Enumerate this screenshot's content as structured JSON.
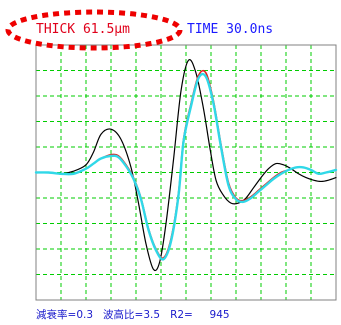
{
  "header": {
    "thickness_label": "THICK",
    "thickness_value": "61.5",
    "thickness_unit": "μm",
    "time_label": "TIME",
    "time_value": "30.0ns"
  },
  "footer": {
    "attenuation_label": "減衰率=",
    "attenuation_value": "0.3",
    "wave_height_ratio_label": "波高比=",
    "wave_height_ratio_value": "3.5",
    "r2_label": "R2=",
    "r2_value": "945"
  },
  "colors": {
    "background": "#ffffff",
    "frame": "#808080",
    "grid": "#00cc00",
    "highlight_ellipse": "#ee0000",
    "thick_text": "#e0001a",
    "time_text": "#1a1aff",
    "footer_text": "#1a1acc",
    "trace_measured": "#000000",
    "trace_fit_red": "#e02020",
    "trace_fit_cyan": "#30d8e8"
  },
  "chart_data": {
    "type": "line",
    "grid": true,
    "grid_style": "dashed",
    "x_divisions": 12,
    "y_divisions": 10,
    "xlim": [
      0,
      12
    ],
    "ylim": [
      -5,
      5
    ],
    "series": [
      {
        "key": "measured",
        "color": "#000000",
        "x": [
          0,
          0.5,
          1.0,
          1.5,
          2.0,
          2.3,
          2.6,
          3.0,
          3.4,
          3.8,
          4.1,
          4.4,
          4.7,
          4.95,
          5.2,
          5.5,
          5.8,
          6.1,
          6.4,
          6.7,
          6.95,
          7.2,
          7.5,
          7.8,
          8.1,
          8.4,
          8.7,
          9.0,
          9.3,
          9.6,
          9.9,
          10.2,
          10.5,
          10.8,
          11.1,
          11.4,
          11.7,
          12.0
        ],
        "y": [
          0,
          0,
          -0.05,
          0.05,
          0.3,
          0.8,
          1.5,
          1.7,
          1.3,
          0.2,
          -1.2,
          -2.8,
          -3.8,
          -3.5,
          -2.0,
          0.5,
          3.2,
          4.4,
          3.9,
          2.5,
          1.0,
          -0.3,
          -0.9,
          -1.2,
          -1.2,
          -1.0,
          -0.6,
          -0.2,
          0.15,
          0.35,
          0.3,
          0.15,
          -0.05,
          -0.2,
          -0.3,
          -0.35,
          -0.3,
          -0.2
        ]
      },
      {
        "key": "fit-red",
        "color": "#e02020",
        "x": [
          0,
          0.5,
          1.0,
          1.5,
          2.0,
          2.3,
          2.6,
          3.0,
          3.3,
          3.6,
          3.9,
          4.2,
          4.5,
          4.8,
          5.1,
          5.4,
          5.7,
          5.9,
          6.2,
          6.5,
          6.8,
          7.1,
          7.4,
          7.7,
          8.0,
          8.3,
          8.6,
          8.9,
          9.2,
          9.5,
          9.8,
          10.1,
          10.4,
          10.7,
          11.0,
          11.3,
          11.6,
          12.0
        ],
        "y": [
          0,
          0,
          -0.05,
          -0.05,
          0.15,
          0.35,
          0.55,
          0.7,
          0.65,
          0.3,
          -0.2,
          -1.0,
          -2.2,
          -3.0,
          -3.35,
          -2.6,
          -0.8,
          1.3,
          2.7,
          3.8,
          3.9,
          2.8,
          1.1,
          -0.4,
          -1.0,
          -1.1,
          -0.95,
          -0.7,
          -0.45,
          -0.2,
          0.0,
          0.1,
          0.2,
          0.2,
          0.1,
          -0.05,
          0.0,
          0.1
        ]
      },
      {
        "key": "fit-cyan",
        "color": "#30d8e8",
        "x": [
          0,
          0.5,
          1.0,
          1.5,
          2.0,
          2.3,
          2.6,
          3.0,
          3.3,
          3.6,
          3.9,
          4.2,
          4.5,
          4.8,
          5.1,
          5.4,
          5.7,
          5.9,
          6.2,
          6.5,
          6.8,
          7.1,
          7.4,
          7.7,
          8.0,
          8.3,
          8.6,
          8.9,
          9.2,
          9.5,
          9.8,
          10.1,
          10.4,
          10.7,
          11.0,
          11.3,
          11.6,
          12.0
        ],
        "y": [
          0,
          0,
          -0.05,
          -0.05,
          0.15,
          0.35,
          0.55,
          0.65,
          0.6,
          0.25,
          -0.25,
          -1.05,
          -2.25,
          -3.05,
          -3.4,
          -2.7,
          -0.9,
          1.2,
          2.6,
          3.7,
          3.75,
          2.7,
          1.0,
          -0.5,
          -1.05,
          -1.15,
          -1.0,
          -0.75,
          -0.5,
          -0.25,
          -0.05,
          0.1,
          0.2,
          0.2,
          0.1,
          -0.05,
          0.0,
          0.1
        ]
      }
    ]
  }
}
